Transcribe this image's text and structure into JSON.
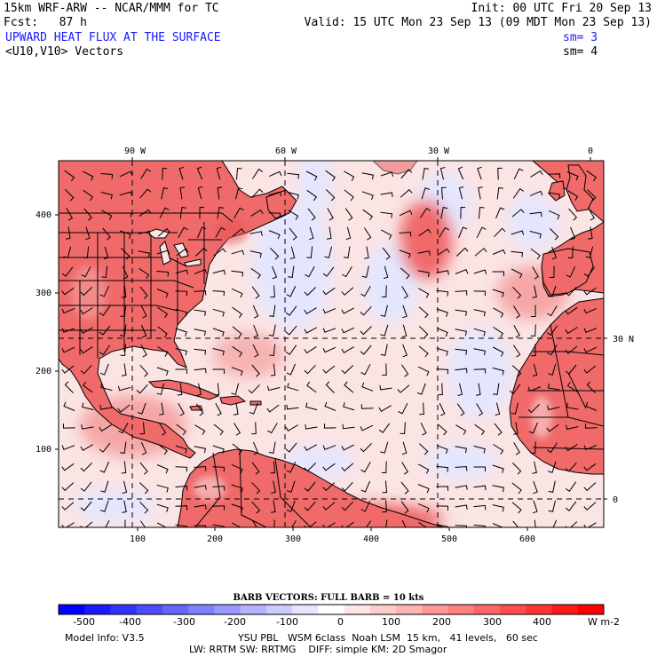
{
  "header": {
    "model_title": "15km WRF-ARW -- NCAR/MMM for TC",
    "init_label": "Init: 00 UTC Fri 20 Sep 13",
    "fcst_label": "Fcst:   87 h",
    "valid_label": "Valid: 15 UTC Mon 23 Sep 13 (09 MDT Mon 23 Sep 13)",
    "field_title": "UPWARD HEAT FLUX AT THE SURFACE",
    "field_sm": "sm= 3",
    "vector_title": "<U10,V10> Vectors",
    "vector_sm": "sm= 4"
  },
  "map": {
    "top_longitude_labels": [
      "90 W",
      "60 W",
      "30 W",
      "0"
    ],
    "right_latitude_labels": [
      "30 N",
      "0"
    ],
    "left_grid_ticks": [
      "400",
      "300",
      "200",
      "100"
    ],
    "bottom_grid_ticks": [
      "100",
      "200",
      "300",
      "400",
      "500",
      "600"
    ],
    "land_color": "#f06a6a",
    "ocean_color": "#fbe4e4",
    "negative_color": "#e4e6ff"
  },
  "colorbar": {
    "title": "BARB VECTORS:  FULL BARB = 10 kts",
    "units": "W m-2",
    "labels": [
      "-500",
      "-400",
      "-300",
      "-200",
      "-100",
      "0",
      "100",
      "200",
      "300",
      "400"
    ],
    "colors": [
      "#0000ff",
      "#1a1aff",
      "#3333ff",
      "#4d4dff",
      "#6666ff",
      "#8080ff",
      "#9999ff",
      "#b3b3ff",
      "#ccccff",
      "#e6e6ff",
      "#ffffff",
      "#ffe6e6",
      "#ffcccc",
      "#ffb3b3",
      "#ff9999",
      "#ff8080",
      "#ff6666",
      "#ff4d4d",
      "#ff3333",
      "#ff1a1a",
      "#ff0000"
    ]
  },
  "footer": {
    "line1_left": "Model Info: V3.5",
    "line1_right": "YSU PBL   WSM 6class  Noah LSM  15 km,   41 levels,   60 sec",
    "line2": "LW: RRTM SW: RRTMG    DIFF: simple KM: 2D Smagor"
  }
}
